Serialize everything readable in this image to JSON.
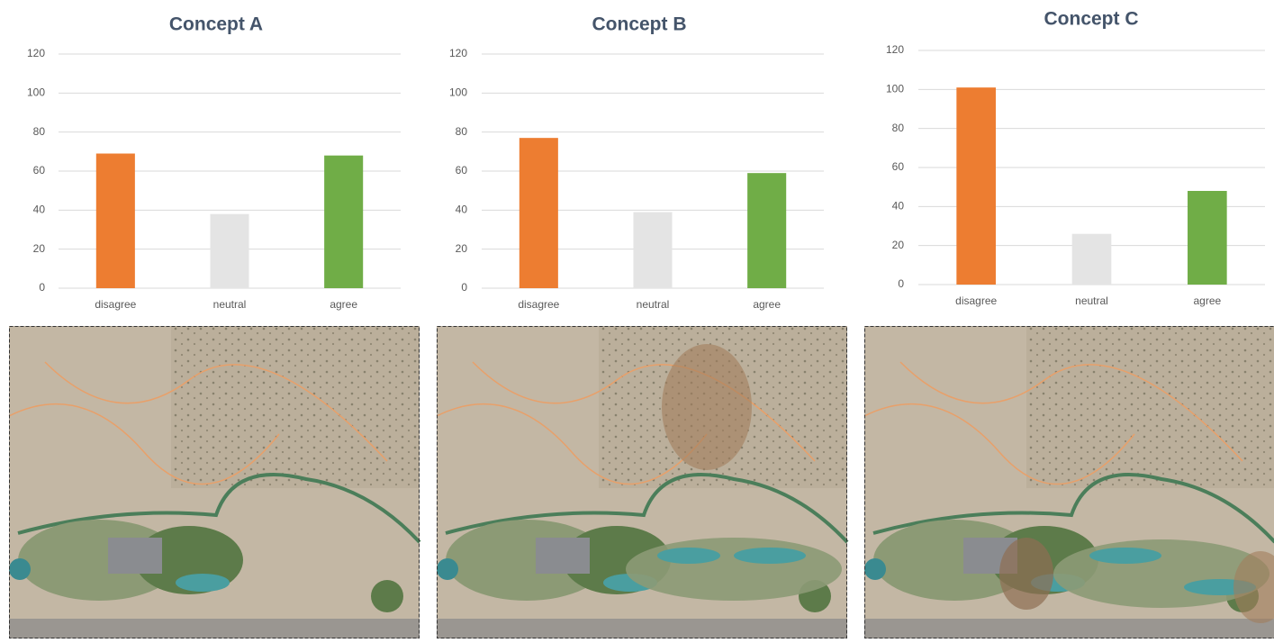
{
  "chart_data": [
    {
      "type": "bar",
      "title": "Concept A",
      "categories": [
        "disagree",
        "neutral",
        "agree"
      ],
      "values": [
        69,
        38,
        68
      ],
      "colors": [
        "#ed7d31",
        "#e4e4e4",
        "#70ad47"
      ],
      "ylim": [
        0,
        120
      ],
      "yticks": [
        0,
        20,
        40,
        60,
        80,
        100,
        120
      ],
      "grid": true
    },
    {
      "type": "bar",
      "title": "Concept B",
      "categories": [
        "disagree",
        "neutral",
        "agree"
      ],
      "values": [
        77,
        39,
        59
      ],
      "colors": [
        "#ed7d31",
        "#e4e4e4",
        "#70ad47"
      ],
      "ylim": [
        0,
        120
      ],
      "yticks": [
        0,
        20,
        40,
        60,
        80,
        100,
        120
      ],
      "grid": true
    },
    {
      "type": "bar",
      "title": "Concept C",
      "categories": [
        "disagree",
        "neutral",
        "agree"
      ],
      "values": [
        101,
        26,
        48
      ],
      "colors": [
        "#ed7d31",
        "#e4e4e4",
        "#70ad47"
      ],
      "ylim": [
        0,
        120
      ],
      "yticks": [
        0,
        20,
        40,
        60,
        80,
        100,
        120
      ],
      "grid": true
    }
  ]
}
